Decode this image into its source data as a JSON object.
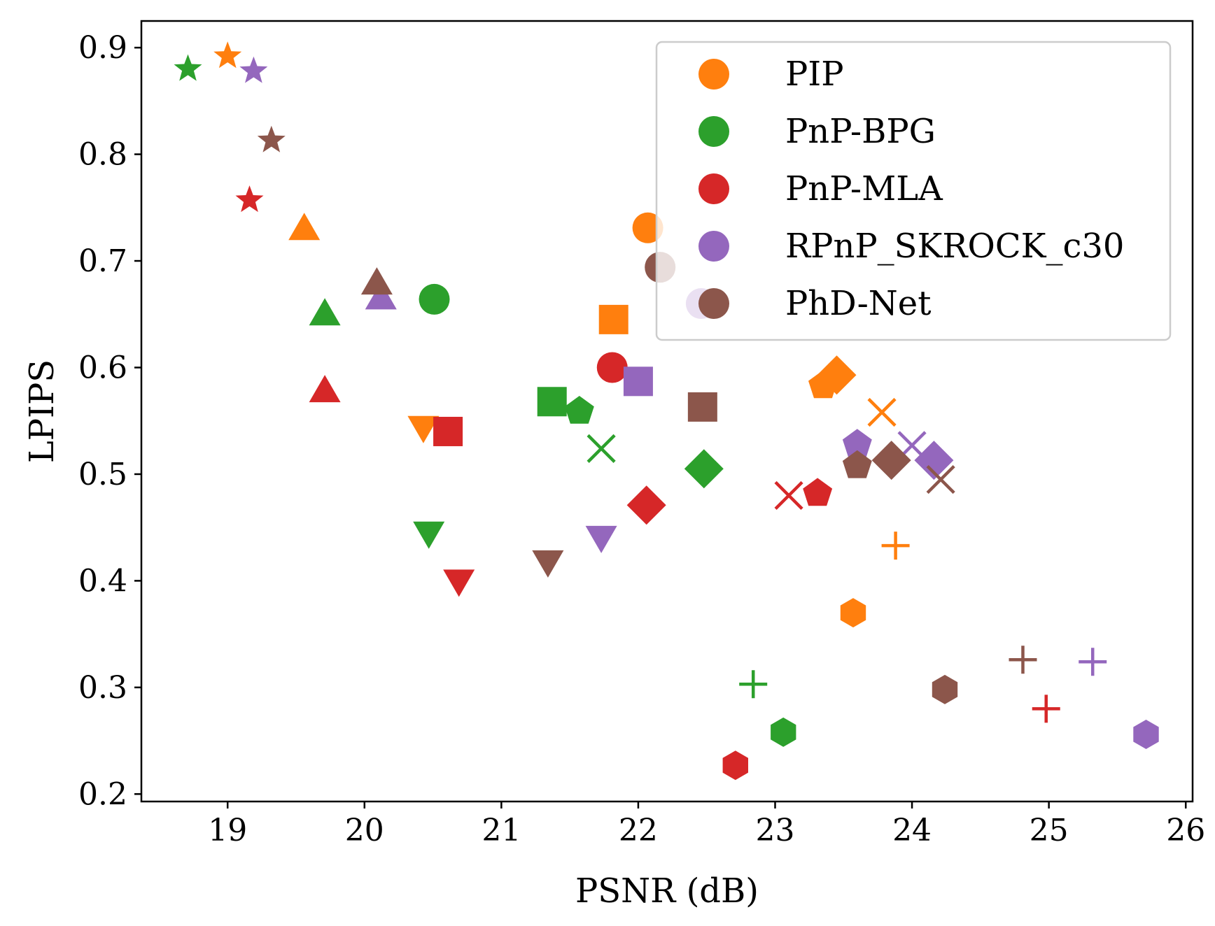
{
  "chart_data": {
    "type": "scatter",
    "title": "",
    "xlabel": "PSNR (dB)",
    "ylabel": "LPIPS",
    "xlim": [
      18.37,
      26.05
    ],
    "ylim": [
      0.193,
      0.925
    ],
    "xticks": [
      19,
      20,
      21,
      22,
      23,
      24,
      25,
      26
    ],
    "yticks": [
      0.2,
      0.3,
      0.4,
      0.5,
      0.6,
      0.7,
      0.8,
      0.9
    ],
    "xtick_labels": [
      "19",
      "20",
      "21",
      "22",
      "23",
      "24",
      "25",
      "26"
    ],
    "ytick_labels": [
      "0.2",
      "0.3",
      "0.4",
      "0.5",
      "0.6",
      "0.7",
      "0.8",
      "0.9"
    ],
    "grid": false,
    "legend_position": "top-right",
    "series": [
      {
        "name": "PIP",
        "color": "#ff7f0e",
        "points": [
          {
            "x": 19.0,
            "y": 0.892,
            "marker": "star"
          },
          {
            "x": 19.56,
            "y": 0.728,
            "marker": "triangle-up"
          },
          {
            "x": 22.07,
            "y": 0.731,
            "marker": "circle"
          },
          {
            "x": 21.82,
            "y": 0.645,
            "marker": "square"
          },
          {
            "x": 20.43,
            "y": 0.546,
            "marker": "triangle-down"
          },
          {
            "x": 23.35,
            "y": 0.583,
            "marker": "pentagon"
          },
          {
            "x": 23.45,
            "y": 0.593,
            "marker": "diamond"
          },
          {
            "x": 23.78,
            "y": 0.558,
            "marker": "x"
          },
          {
            "x": 23.88,
            "y": 0.433,
            "marker": "plus"
          },
          {
            "x": 23.57,
            "y": 0.37,
            "marker": "hexagon"
          }
        ]
      },
      {
        "name": "PnP-BPG",
        "color": "#2ca02c",
        "points": [
          {
            "x": 18.71,
            "y": 0.88,
            "marker": "star"
          },
          {
            "x": 19.71,
            "y": 0.648,
            "marker": "triangle-up"
          },
          {
            "x": 20.51,
            "y": 0.664,
            "marker": "circle"
          },
          {
            "x": 21.37,
            "y": 0.568,
            "marker": "square"
          },
          {
            "x": 20.47,
            "y": 0.447,
            "marker": "triangle-down"
          },
          {
            "x": 21.57,
            "y": 0.559,
            "marker": "pentagon"
          },
          {
            "x": 22.48,
            "y": 0.505,
            "marker": "diamond"
          },
          {
            "x": 21.73,
            "y": 0.524,
            "marker": "x"
          },
          {
            "x": 22.84,
            "y": 0.303,
            "marker": "plus"
          },
          {
            "x": 23.06,
            "y": 0.258,
            "marker": "hexagon"
          }
        ]
      },
      {
        "name": "PnP-MLA",
        "color": "#d62728",
        "points": [
          {
            "x": 19.16,
            "y": 0.757,
            "marker": "star"
          },
          {
            "x": 19.71,
            "y": 0.576,
            "marker": "triangle-up"
          },
          {
            "x": 21.81,
            "y": 0.6,
            "marker": "circle"
          },
          {
            "x": 20.61,
            "y": 0.54,
            "marker": "square"
          },
          {
            "x": 20.69,
            "y": 0.402,
            "marker": "triangle-down"
          },
          {
            "x": 23.31,
            "y": 0.482,
            "marker": "pentagon"
          },
          {
            "x": 22.06,
            "y": 0.471,
            "marker": "diamond"
          },
          {
            "x": 23.1,
            "y": 0.48,
            "marker": "x"
          },
          {
            "x": 24.98,
            "y": 0.28,
            "marker": "plus"
          },
          {
            "x": 22.71,
            "y": 0.227,
            "marker": "hexagon"
          }
        ]
      },
      {
        "name": "RPnP_SKROCK_c30",
        "color": "#9467bd",
        "points": [
          {
            "x": 19.19,
            "y": 0.878,
            "marker": "star"
          },
          {
            "x": 20.12,
            "y": 0.663,
            "marker": "triangle-up"
          },
          {
            "x": 22.46,
            "y": 0.66,
            "marker": "circle"
          },
          {
            "x": 22.0,
            "y": 0.587,
            "marker": "square"
          },
          {
            "x": 21.73,
            "y": 0.443,
            "marker": "triangle-down"
          },
          {
            "x": 23.6,
            "y": 0.528,
            "marker": "pentagon"
          },
          {
            "x": 24.16,
            "y": 0.513,
            "marker": "diamond"
          },
          {
            "x": 24.0,
            "y": 0.527,
            "marker": "x"
          },
          {
            "x": 25.32,
            "y": 0.324,
            "marker": "plus"
          },
          {
            "x": 25.71,
            "y": 0.256,
            "marker": "hexagon"
          }
        ]
      },
      {
        "name": "PhD-Net",
        "color": "#8c564b",
        "points": [
          {
            "x": 19.32,
            "y": 0.813,
            "marker": "star"
          },
          {
            "x": 20.09,
            "y": 0.677,
            "marker": "triangle-up"
          },
          {
            "x": 22.16,
            "y": 0.694,
            "marker": "circle"
          },
          {
            "x": 22.47,
            "y": 0.563,
            "marker": "square"
          },
          {
            "x": 21.34,
            "y": 0.42,
            "marker": "triangle-down"
          },
          {
            "x": 23.6,
            "y": 0.508,
            "marker": "pentagon"
          },
          {
            "x": 23.85,
            "y": 0.513,
            "marker": "diamond"
          },
          {
            "x": 24.21,
            "y": 0.495,
            "marker": "x"
          },
          {
            "x": 24.81,
            "y": 0.326,
            "marker": "plus"
          },
          {
            "x": 24.24,
            "y": 0.298,
            "marker": "hexagon"
          }
        ]
      }
    ]
  }
}
